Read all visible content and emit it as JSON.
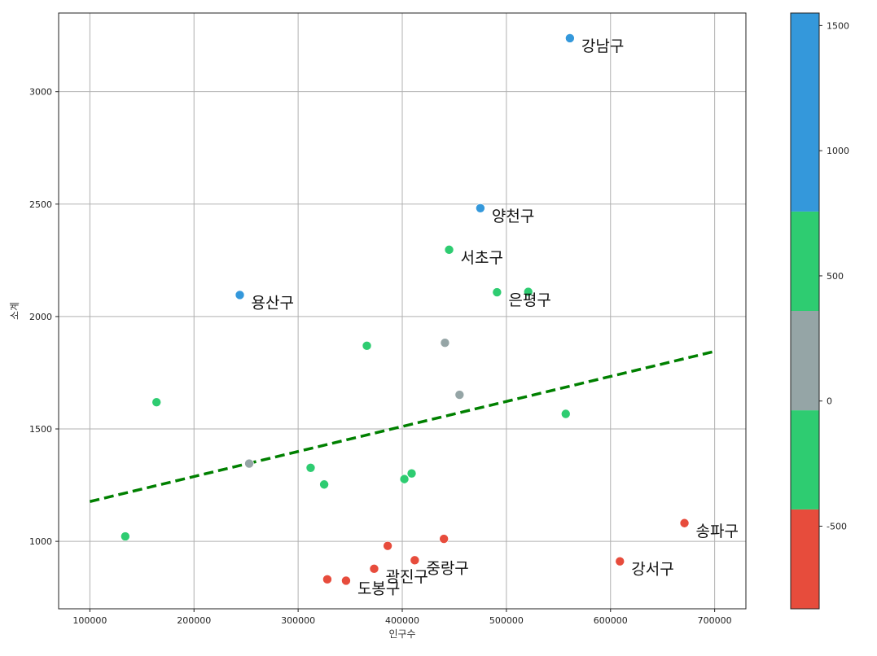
{
  "chart_data": {
    "type": "scatter",
    "title": "",
    "xlabel": "인구수",
    "ylabel": "소계",
    "xlim": [
      70000,
      730000
    ],
    "ylim": [
      700,
      3350
    ],
    "x_ticks": [
      100000,
      200000,
      300000,
      400000,
      500000,
      600000,
      700000
    ],
    "x_tick_labels": [
      "100000",
      "200000",
      "300000",
      "400000",
      "500000",
      "600000",
      "700000"
    ],
    "y_ticks": [
      1000,
      1500,
      2000,
      2500,
      3000
    ],
    "y_tick_labels": [
      "1000",
      "1500",
      "2000",
      "2500",
      "3000"
    ],
    "grid": true,
    "points": [
      {
        "x": 561000,
        "y": 3238,
        "c": 1400
      },
      {
        "x": 475000,
        "y": 2482,
        "c": 950
      },
      {
        "x": 244000,
        "y": 2096,
        "c": 1000
      },
      {
        "x": 445000,
        "y": 2297,
        "c": 600
      },
      {
        "x": 491000,
        "y": 2108,
        "c": 450
      },
      {
        "x": 521000,
        "y": 2110,
        "c": 420
      },
      {
        "x": 366000,
        "y": 1870,
        "c": 500
      },
      {
        "x": 164000,
        "y": 1619,
        "c": 550
      },
      {
        "x": 441000,
        "y": 1883,
        "c": 150
      },
      {
        "x": 455000,
        "y": 1652,
        "c": 50
      },
      {
        "x": 557000,
        "y": 1567,
        "c": -200
      },
      {
        "x": 253000,
        "y": 1346,
        "c": 100
      },
      {
        "x": 312000,
        "y": 1327,
        "c": -100
      },
      {
        "x": 325000,
        "y": 1253,
        "c": -150
      },
      {
        "x": 402000,
        "y": 1277,
        "c": -250
      },
      {
        "x": 409000,
        "y": 1302,
        "c": -200
      },
      {
        "x": 134000,
        "y": 1022,
        "c": -200
      },
      {
        "x": 671000,
        "y": 1081,
        "c": -700
      },
      {
        "x": 609000,
        "y": 911,
        "c": -700
      },
      {
        "x": 386000,
        "y": 980,
        "c": -600
      },
      {
        "x": 440000,
        "y": 1011,
        "c": -550
      },
      {
        "x": 412000,
        "y": 916,
        "c": -650
      },
      {
        "x": 373000,
        "y": 878,
        "c": -650
      },
      {
        "x": 328000,
        "y": 831,
        "c": -700
      },
      {
        "x": 346000,
        "y": 825,
        "c": -700
      }
    ],
    "annotations": [
      {
        "text": "강남구",
        "x": 561000,
        "y": 3238
      },
      {
        "text": "양천구",
        "x": 475000,
        "y": 2482
      },
      {
        "text": "용산구",
        "x": 244000,
        "y": 2096
      },
      {
        "text": "서초구",
        "x": 445000,
        "y": 2297
      },
      {
        "text": "은평구",
        "x": 491000,
        "y": 2108
      },
      {
        "text": "송파구",
        "x": 671000,
        "y": 1081
      },
      {
        "text": "강서구",
        "x": 609000,
        "y": 911
      },
      {
        "text": "중랑구",
        "x": 412000,
        "y": 916
      },
      {
        "text": "광진구",
        "x": 373000,
        "y": 878
      },
      {
        "text": "도봉구",
        "x": 346000,
        "y": 825
      }
    ],
    "trend_line": {
      "x": [
        100000,
        700000
      ],
      "y": [
        1177,
        1845
      ],
      "color": "#008000",
      "style": "dashed"
    },
    "colorbar": {
      "range": [
        -830,
        1550
      ],
      "ticks": [
        -500,
        0,
        500,
        1000,
        1500
      ],
      "tick_labels": [
        "-500",
        "0",
        "500",
        "1000",
        "1500"
      ],
      "bands": [
        {
          "from": -830,
          "to": -433,
          "color": "#e74c3c"
        },
        {
          "from": -433,
          "to": -37,
          "color": "#2ecc71"
        },
        {
          "from": -37,
          "to": 360,
          "color": "#95a5a6"
        },
        {
          "from": 360,
          "to": 757,
          "color": "#2ecc71"
        },
        {
          "from": 757,
          "to": 1550,
          "color": "#3498db"
        }
      ]
    }
  }
}
